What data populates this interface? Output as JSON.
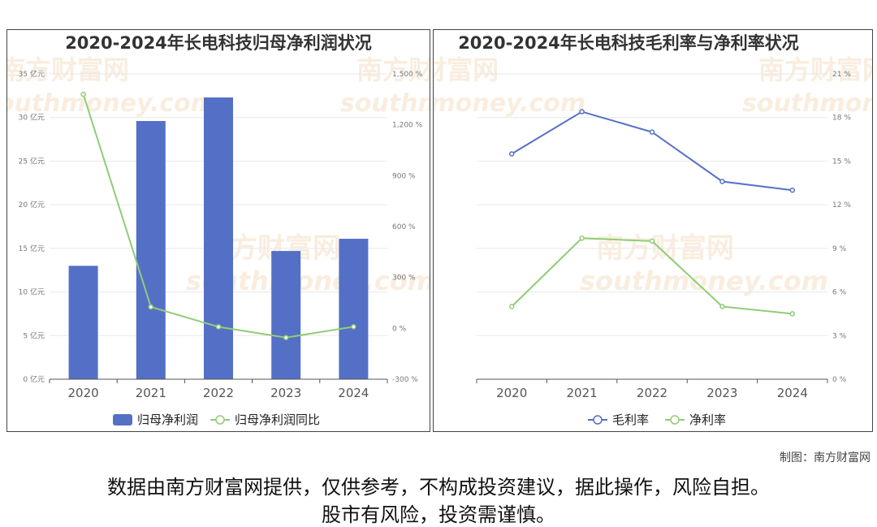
{
  "chart_data": [
    {
      "type": "bar",
      "title": "2020-2024年长电科技归母净利润状况",
      "categories": [
        "2020",
        "2021",
        "2022",
        "2023",
        "2024"
      ],
      "series": [
        {
          "name": "归母净利润",
          "type": "bar",
          "axis": "left",
          "values": [
            13.0,
            29.6,
            32.3,
            14.7,
            16.1
          ],
          "color": "#5470c6"
        },
        {
          "name": "归母净利润同比",
          "type": "line",
          "axis": "right",
          "values": [
            1380,
            126,
            8.9,
            -54.5,
            9.4
          ],
          "color": "#91cc75"
        }
      ],
      "y_left": {
        "min": 0,
        "max": 35,
        "step": 5,
        "ticks": [
          "0 亿元",
          "5 亿元",
          "10 亿元",
          "15 亿元",
          "20 亿元",
          "25 亿元",
          "30 亿元",
          "35 亿元"
        ]
      },
      "y_right": {
        "min": -300,
        "max": 1500,
        "step": 300,
        "ticks": [
          "-300 %",
          "0 %",
          "300 %",
          "600 %",
          "900 %",
          "1,200 %",
          "1,500 %"
        ]
      },
      "legend_position": "bottom",
      "grid": true
    },
    {
      "type": "line",
      "title": "2020-2024年长电科技毛利率与净利率状况",
      "categories": [
        "2020",
        "2021",
        "2022",
        "2023",
        "2024"
      ],
      "series": [
        {
          "name": "毛利率",
          "values": [
            15.5,
            18.4,
            17.0,
            13.6,
            13.0
          ],
          "color": "#5470c6"
        },
        {
          "name": "净利率",
          "values": [
            5.0,
            9.7,
            9.5,
            5.0,
            4.5
          ],
          "color": "#91cc75"
        }
      ],
      "y_right": {
        "min": 0,
        "max": 21,
        "step": 3,
        "ticks": [
          "0 %",
          "3 %",
          "6 %",
          "9 %",
          "12 %",
          "15 %",
          "18 %",
          "21 %"
        ]
      },
      "legend_position": "bottom",
      "grid": true
    }
  ],
  "watermark": {
    "cn": "南方财富网",
    "en": "southmoney.com"
  },
  "footer": {
    "credit": "制图：南方财富网",
    "disclaimer_line1": "数据由南方财富网提供，仅供参考，不构成投资建议，据此操作，风险自担。",
    "disclaimer_line2": "股市有风险，投资需谨慎。"
  }
}
